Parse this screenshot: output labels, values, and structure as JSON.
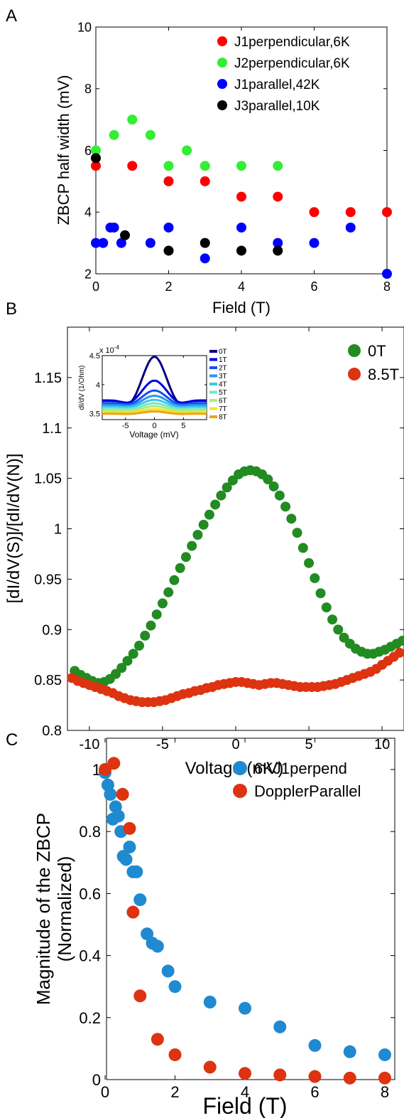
{
  "panels": {
    "a": "A",
    "b": "B",
    "c": "C"
  },
  "chart_data": [
    {
      "type": "scatter",
      "xlabel": "Field (T)",
      "ylabel": "ZBCP half width (mV)",
      "xlim": [
        0,
        8
      ],
      "ylim": [
        2,
        10
      ],
      "xticks": [
        "0",
        "2",
        "4",
        "6",
        "8"
      ],
      "yticks": [
        "2",
        "4",
        "6",
        "8",
        "10"
      ],
      "legend_position": "top-right",
      "series": [
        {
          "name": "J1perpendicular,6K",
          "color": "#ff0000",
          "x": [
            0,
            1,
            2,
            3,
            4,
            5,
            6,
            7,
            8
          ],
          "y": [
            5.5,
            5.5,
            5.0,
            5.0,
            4.5,
            4.5,
            4.0,
            4.0,
            4.0
          ]
        },
        {
          "name": "J2perpendicular,6K",
          "color": "#33ee33",
          "x": [
            0,
            0.5,
            1,
            1.5,
            2,
            2.5,
            3,
            4,
            5
          ],
          "y": [
            6.0,
            6.5,
            7.0,
            6.5,
            5.5,
            6.0,
            5.5,
            5.5,
            5.5
          ]
        },
        {
          "name": "J1parallel,42K",
          "color": "#0000ff",
          "x": [
            0,
            0.2,
            0.4,
            0.5,
            0.7,
            1.5,
            2,
            3,
            4,
            5,
            6,
            7,
            8
          ],
          "y": [
            3.0,
            3.0,
            3.5,
            3.5,
            3.0,
            3.0,
            3.5,
            2.5,
            3.5,
            3.0,
            3.0,
            3.5,
            2.0
          ]
        },
        {
          "name": "J3parallel,10K",
          "color": "#000000",
          "x": [
            0,
            0.8,
            2,
            3,
            4,
            5
          ],
          "y": [
            5.75,
            3.25,
            2.75,
            3.0,
            2.75,
            2.75
          ]
        }
      ]
    },
    {
      "type": "scatter",
      "xlabel": "Voltage (mV)",
      "ylabel": "[dI/dV(S)]/[dI/dV(N)]",
      "xlim": [
        -11.5,
        11.5
      ],
      "ylim": [
        0.8,
        1.2
      ],
      "xticks": [
        "-10",
        "-5",
        "0",
        "5",
        "10"
      ],
      "yticks": [
        "0.8",
        "0.85",
        "0.9",
        "0.95",
        "1",
        "1.05",
        "1.1",
        "1.15"
      ],
      "legend_position": "top-right",
      "series": [
        {
          "name": "0T",
          "color": "#228b22",
          "x": [
            -11.0,
            -10.6,
            -10.2,
            -9.8,
            -9.4,
            -9.0,
            -8.6,
            -8.2,
            -7.8,
            -7.4,
            -7.0,
            -6.6,
            -6.2,
            -5.8,
            -5.4,
            -5.0,
            -4.6,
            -4.2,
            -3.8,
            -3.4,
            -3.0,
            -2.6,
            -2.2,
            -1.8,
            -1.4,
            -1.0,
            -0.6,
            -0.2,
            0.2,
            0.6,
            1.0,
            1.4,
            1.8,
            2.2,
            2.6,
            3.0,
            3.4,
            3.8,
            4.2,
            4.6,
            5.0,
            5.4,
            5.8,
            6.2,
            6.6,
            7.0,
            7.4,
            7.8,
            8.2,
            8.6,
            9.0,
            9.4,
            9.8,
            10.2,
            10.6,
            11.0,
            11.4
          ],
          "y": [
            0.859,
            0.855,
            0.852,
            0.849,
            0.847,
            0.848,
            0.851,
            0.856,
            0.862,
            0.869,
            0.876,
            0.884,
            0.894,
            0.904,
            0.915,
            0.926,
            0.937,
            0.949,
            0.961,
            0.972,
            0.983,
            0.994,
            1.004,
            1.014,
            1.024,
            1.033,
            1.041,
            1.048,
            1.054,
            1.057,
            1.058,
            1.057,
            1.054,
            1.049,
            1.042,
            1.033,
            1.022,
            1.01,
            0.996,
            0.981,
            0.966,
            0.951,
            0.936,
            0.922,
            0.91,
            0.9,
            0.892,
            0.886,
            0.881,
            0.878,
            0.876,
            0.876,
            0.878,
            0.88,
            0.883,
            0.886,
            0.889
          ]
        },
        {
          "name": "8.5T",
          "color": "#dd3311",
          "x": [
            -11.2,
            -10.8,
            -10.4,
            -10.0,
            -9.6,
            -9.2,
            -8.8,
            -8.4,
            -8.0,
            -7.6,
            -7.2,
            -6.8,
            -6.4,
            -6.0,
            -5.6,
            -5.2,
            -4.8,
            -4.4,
            -4.0,
            -3.6,
            -3.2,
            -2.8,
            -2.4,
            -2.0,
            -1.6,
            -1.2,
            -0.8,
            -0.4,
            0.0,
            0.4,
            0.8,
            1.2,
            1.6,
            2.0,
            2.4,
            2.8,
            3.2,
            3.6,
            4.0,
            4.4,
            4.8,
            5.2,
            5.6,
            6.0,
            6.4,
            6.8,
            7.2,
            7.6,
            8.0,
            8.4,
            8.8,
            9.2,
            9.6,
            10.0,
            10.4,
            10.8,
            11.2
          ],
          "y": [
            0.852,
            0.849,
            0.847,
            0.845,
            0.843,
            0.841,
            0.839,
            0.837,
            0.834,
            0.832,
            0.83,
            0.829,
            0.828,
            0.828,
            0.828,
            0.829,
            0.83,
            0.832,
            0.834,
            0.836,
            0.837,
            0.839,
            0.84,
            0.842,
            0.843,
            0.845,
            0.846,
            0.847,
            0.848,
            0.848,
            0.847,
            0.846,
            0.845,
            0.846,
            0.847,
            0.847,
            0.846,
            0.845,
            0.844,
            0.843,
            0.843,
            0.843,
            0.843,
            0.844,
            0.845,
            0.846,
            0.848,
            0.85,
            0.852,
            0.854,
            0.856,
            0.858,
            0.861,
            0.865,
            0.869,
            0.873,
            0.877
          ]
        }
      ],
      "inset": {
        "type": "line",
        "xlabel": "Voltage (mV)",
        "ylabel": "dI/dV (1/Ohm)",
        "exponent_label": "x 10",
        "exponent_power": "-4",
        "xlim": [
          -9,
          9
        ],
        "ylim": [
          3.4,
          4.5
        ],
        "xticks": [
          "-5",
          "0",
          "5"
        ],
        "yticks": [
          "3.5",
          "4",
          "4.5"
        ],
        "legend_position": "right",
        "series": [
          {
            "name": "0T",
            "color": "#000080",
            "amp": 0.75,
            "base": 3.73
          },
          {
            "name": "1T",
            "color": "#0000dd",
            "amp": 0.35,
            "base": 3.72
          },
          {
            "name": "2T",
            "color": "#1450f0",
            "amp": 0.22,
            "base": 3.68
          },
          {
            "name": "3T",
            "color": "#2896ee",
            "amp": 0.16,
            "base": 3.65
          },
          {
            "name": "4T",
            "color": "#3cc8f0",
            "amp": 0.12,
            "base": 3.62
          },
          {
            "name": "5T",
            "color": "#78e6c8",
            "amp": 0.09,
            "base": 3.59
          },
          {
            "name": "6T",
            "color": "#aaee78",
            "amp": 0.07,
            "base": 3.56
          },
          {
            "name": "7T",
            "color": "#f0e628",
            "amp": 0.05,
            "base": 3.53
          },
          {
            "name": "8T",
            "color": "#f0a020",
            "amp": 0.04,
            "base": 3.5
          }
        ]
      }
    },
    {
      "type": "scatter",
      "xlabel": "Field (T)",
      "ylabel_line1": "Magnitude of the ZBCP",
      "ylabel_line2": "(Normalized)",
      "xlim": [
        0,
        8
      ],
      "ylim": [
        0,
        1.05
      ],
      "xticks": [
        "0",
        "2",
        "4",
        "6",
        "8"
      ],
      "yticks": [
        "0",
        "0.2",
        "0.4",
        "0.6",
        "0.8",
        "1"
      ],
      "legend_position": "top-right",
      "series": [
        {
          "name": "6KJ1perpend",
          "color": "#1f8ad0",
          "x": [
            0,
            0.08,
            0.15,
            0.22,
            0.3,
            0.38,
            0.45,
            0.52,
            0.6,
            0.7,
            0.8,
            0.9,
            1.0,
            1.2,
            1.35,
            1.5,
            1.8,
            2.0,
            3.0,
            4.0,
            5.0,
            6.0,
            7.0,
            8.0
          ],
          "y": [
            0.99,
            0.95,
            0.92,
            0.84,
            0.88,
            0.85,
            0.8,
            0.72,
            0.71,
            0.75,
            0.67,
            0.67,
            0.58,
            0.47,
            0.44,
            0.43,
            0.35,
            0.3,
            0.25,
            0.23,
            0.17,
            0.11,
            0.09,
            0.08
          ]
        },
        {
          "name": "DopplerParallel",
          "color": "#dd3311",
          "x": [
            0,
            0.25,
            0.5,
            0.7,
            0.8,
            1.0,
            1.5,
            2.0,
            3.0,
            4.0,
            5.0,
            6.0,
            7.0,
            8.0
          ],
          "y": [
            1.0,
            1.02,
            0.92,
            0.81,
            0.54,
            0.27,
            0.13,
            0.08,
            0.04,
            0.02,
            0.015,
            0.01,
            0.005,
            0.005
          ]
        }
      ]
    }
  ]
}
